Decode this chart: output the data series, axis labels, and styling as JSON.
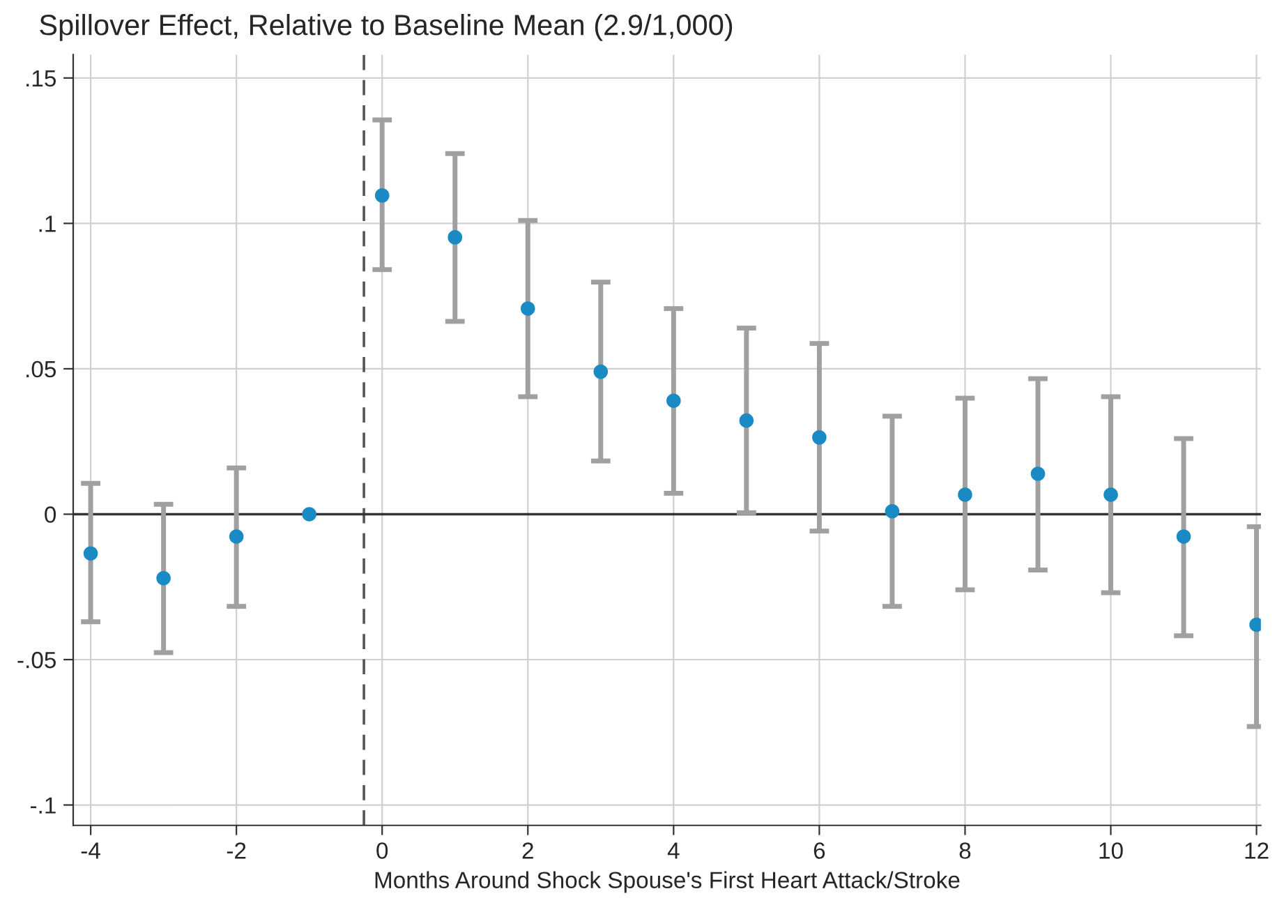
{
  "chart_data": {
    "type": "scatter",
    "title": "Spillover Effect, Relative to Baseline Mean (2.9/1,000)",
    "xlabel": "Months Around Shock Spouse's First Heart Attack/Stroke",
    "x": [
      -4,
      -3,
      -2,
      -1,
      0,
      1,
      2,
      3,
      4,
      5,
      6,
      7,
      8,
      9,
      10,
      11,
      12
    ],
    "series": [
      {
        "color": "#1a8ac4",
        "values": [
          -0.0135,
          -0.022,
          -0.0077,
          0,
          0.1096,
          0.0952,
          0.0707,
          0.049,
          0.039,
          0.0322,
          0.0264,
          0.001,
          0.0067,
          0.0139,
          0.0067,
          -0.0077,
          -0.038
        ],
        "errors": [
          [
            -0.037,
            0.0106
          ],
          [
            -0.0476,
            0.0034
          ],
          [
            -0.0317,
            0.0159
          ],
          null,
          [
            0.0841,
            0.1356
          ],
          [
            0.0663,
            0.124
          ],
          [
            0.0404,
            0.101
          ],
          [
            0.0183,
            0.0798
          ],
          [
            0.0072,
            0.0707
          ],
          [
            0.0005,
            0.064
          ],
          [
            -0.0058,
            0.0587
          ],
          [
            -0.0317,
            0.0337
          ],
          [
            -0.026,
            0.0399
          ],
          [
            -0.0192,
            0.0466
          ],
          [
            -0.027,
            0.0404
          ],
          [
            -0.0418,
            0.026
          ],
          [
            -0.073,
            -0.0043
          ]
        ]
      }
    ],
    "xlim": [
      -4.24,
      12.06
    ],
    "ylim": [
      -0.107,
      0.158
    ],
    "xticks": [
      -4,
      -2,
      0,
      2,
      4,
      6,
      8,
      10,
      12
    ],
    "yticks": [
      {
        "value": 0.15,
        "label": ".15"
      },
      {
        "value": 0.1,
        "label": ".1"
      },
      {
        "value": 0.05,
        "label": ".05"
      },
      0,
      {
        "value": -0.05,
        "label": "-.05"
      },
      {
        "value": -0.1,
        "label": "-.1"
      }
    ],
    "ref_lines": [
      {
        "axis": "x",
        "value": -0.25,
        "color": "#555555",
        "line_style": "dashed"
      },
      {
        "axis": "y",
        "value": 0,
        "color": "#333333",
        "line_style": "solid"
      }
    ],
    "grid": true,
    "marker": "circle"
  }
}
